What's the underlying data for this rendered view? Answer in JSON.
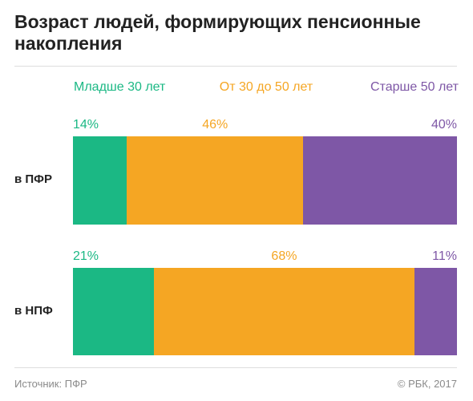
{
  "chart_data": {
    "type": "bar",
    "stacked": true,
    "orientation": "horizontal",
    "title": "Возраст людей, формирующих пенсионные накопления",
    "categories": [
      "в ПФР",
      "в НПФ"
    ],
    "series": [
      {
        "name": "Младше 30 лет",
        "color": "#1BB884",
        "values": [
          14,
          21
        ],
        "labels": [
          "14%",
          "21%"
        ]
      },
      {
        "name": "От 30 до 50 лет",
        "color": "#F5A623",
        "values": [
          46,
          68
        ],
        "labels": [
          "46%",
          "68%"
        ]
      },
      {
        "name": "Старше 50 лет",
        "color": "#7E57A6",
        "values": [
          40,
          11
        ],
        "labels": [
          "40%",
          "11%"
        ]
      }
    ],
    "legend": "top",
    "unit": "%"
  },
  "footer": {
    "source": "Источник: ПФР",
    "copyright": "© РБК, 2017"
  }
}
